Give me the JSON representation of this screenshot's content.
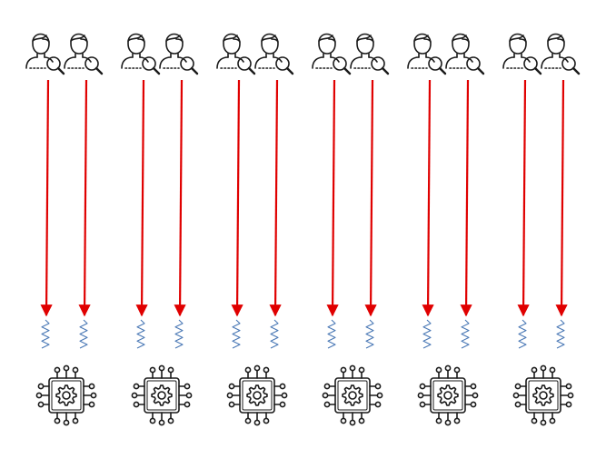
{
  "diagram": {
    "groups": 6,
    "users_per_group": 2,
    "user_icon": "user-search-icon",
    "link_icon": "red-arrow-icon",
    "signal_icon": "wave-signal-icon",
    "device_icon": "processor-chip-gear-icon",
    "colors": {
      "background": "#ffffff",
      "icon_stroke": "#1a1a1a",
      "arrow": "#e00000",
      "wave": "#4a78b5"
    }
  }
}
